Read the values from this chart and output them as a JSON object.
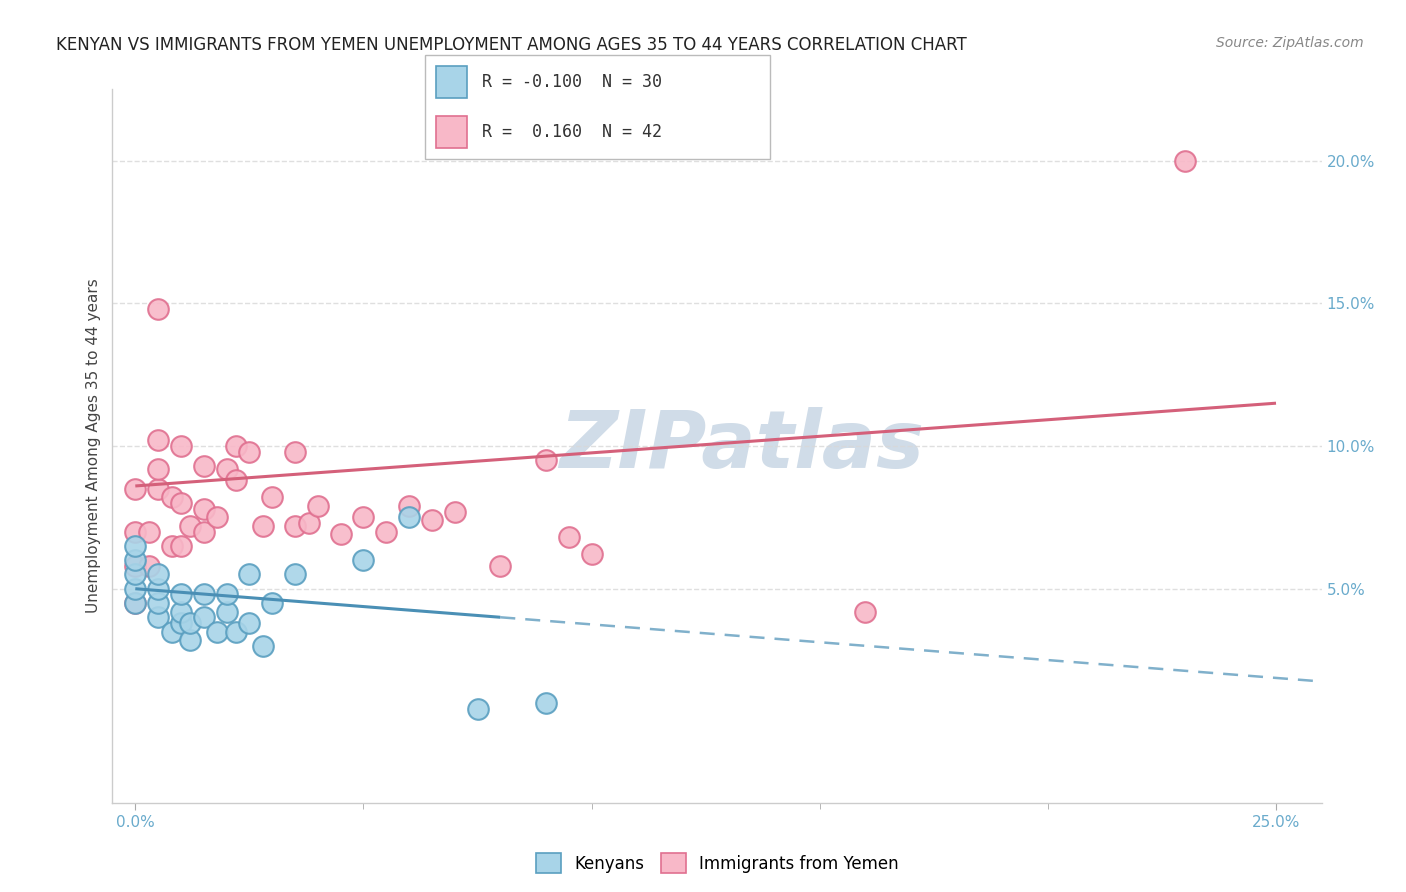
{
  "title": "KENYAN VS IMMIGRANTS FROM YEMEN UNEMPLOYMENT AMONG AGES 35 TO 44 YEARS CORRELATION CHART",
  "source": "Source: ZipAtlas.com",
  "ylabel": "Unemployment Among Ages 35 to 44 years",
  "xlim": [
    -0.005,
    0.26
  ],
  "ylim": [
    -0.025,
    0.225
  ],
  "kenyan_color": "#a8d4e8",
  "kenyan_edge": "#5a9fc0",
  "kenyan_line_color": "#4a8fb5",
  "yemen_color": "#f8b8c8",
  "yemen_edge": "#e07090",
  "yemen_line_color": "#d4607a",
  "kenyan_R": -0.1,
  "kenyan_N": 30,
  "yemen_R": 0.16,
  "yemen_N": 42,
  "kenyan_x": [
    0.0,
    0.0,
    0.0,
    0.0,
    0.0,
    0.005,
    0.005,
    0.005,
    0.005,
    0.008,
    0.01,
    0.01,
    0.01,
    0.012,
    0.012,
    0.015,
    0.015,
    0.018,
    0.02,
    0.02,
    0.022,
    0.025,
    0.025,
    0.028,
    0.03,
    0.035,
    0.05,
    0.06,
    0.075,
    0.09
  ],
  "kenyan_y": [
    0.045,
    0.05,
    0.055,
    0.06,
    0.065,
    0.04,
    0.045,
    0.05,
    0.055,
    0.035,
    0.038,
    0.042,
    0.048,
    0.032,
    0.038,
    0.04,
    0.048,
    0.035,
    0.042,
    0.048,
    0.035,
    0.038,
    0.055,
    0.03,
    0.045,
    0.055,
    0.06,
    0.075,
    0.008,
    0.01
  ],
  "yemen_x": [
    0.0,
    0.0,
    0.0,
    0.0,
    0.003,
    0.003,
    0.005,
    0.005,
    0.005,
    0.005,
    0.008,
    0.008,
    0.01,
    0.01,
    0.01,
    0.012,
    0.015,
    0.015,
    0.015,
    0.018,
    0.02,
    0.022,
    0.022,
    0.025,
    0.028,
    0.03,
    0.035,
    0.035,
    0.038,
    0.04,
    0.045,
    0.05,
    0.055,
    0.06,
    0.065,
    0.07,
    0.08,
    0.09,
    0.095,
    0.1,
    0.16,
    0.23
  ],
  "yemen_y": [
    0.045,
    0.058,
    0.07,
    0.085,
    0.058,
    0.07,
    0.085,
    0.092,
    0.102,
    0.148,
    0.065,
    0.082,
    0.065,
    0.08,
    0.1,
    0.072,
    0.07,
    0.078,
    0.093,
    0.075,
    0.092,
    0.088,
    0.1,
    0.098,
    0.072,
    0.082,
    0.098,
    0.072,
    0.073,
    0.079,
    0.069,
    0.075,
    0.07,
    0.079,
    0.074,
    0.077,
    0.058,
    0.095,
    0.068,
    0.062,
    0.042,
    0.2
  ],
  "watermark": "ZIPatlas",
  "watermark_color": "#d0dce8",
  "background_color": "#ffffff",
  "grid_color": "#d8d8d8",
  "ytick_positions": [
    0.05,
    0.1,
    0.15,
    0.2
  ],
  "ytick_labels": [
    "5.0%",
    "10.0%",
    "15.0%",
    "20.0%"
  ],
  "legend_top_label": "R = -0.100  N = 30",
  "legend_bot_label": "R =  0.160  N = 42"
}
